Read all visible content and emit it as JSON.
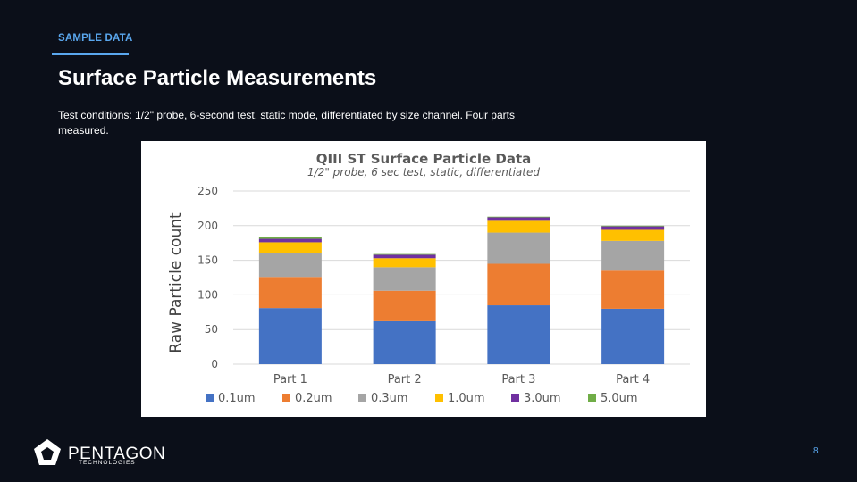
{
  "header": {
    "section_label": "SAMPLE DATA",
    "title": "Surface Particle Measurements",
    "subtitle": "Test conditions: 1/2\" probe, 6-second test, static mode, differentiated by size channel. Four parts measured."
  },
  "chart_data": {
    "type": "bar",
    "stacked": true,
    "title": "QIII ST Surface Particle Data",
    "subtitle": "1/2\" probe, 6 sec test, static, differentiated",
    "xlabel": "",
    "ylabel": "Raw Particle count",
    "ylim": [
      0,
      250
    ],
    "yticks": [
      0,
      50,
      100,
      150,
      200,
      250
    ],
    "grid": true,
    "legend": "bottom",
    "categories": [
      "Part 1",
      "Part 2",
      "Part 3",
      "Part 4"
    ],
    "series": [
      {
        "name": "0.1um",
        "color": "#4472c4",
        "values": [
          81,
          62,
          85,
          80
        ]
      },
      {
        "name": "0.2um",
        "color": "#ed7d31",
        "values": [
          45,
          44,
          60,
          55
        ]
      },
      {
        "name": "0.3um",
        "color": "#a5a5a5",
        "values": [
          35,
          34,
          45,
          43
        ]
      },
      {
        "name": "1.0um",
        "color": "#ffc000",
        "values": [
          15,
          13,
          17,
          16
        ]
      },
      {
        "name": "3.0um",
        "color": "#7030a0",
        "values": [
          5,
          5,
          5,
          5
        ]
      },
      {
        "name": "5.0um",
        "color": "#70ad47",
        "values": [
          2,
          1,
          1,
          1
        ]
      }
    ]
  },
  "footer": {
    "logo_name": "PENTAGON",
    "logo_sub": "TECHNOLOGIES",
    "logo_icon": "pentagon-logo-icon",
    "page_number": "8"
  }
}
